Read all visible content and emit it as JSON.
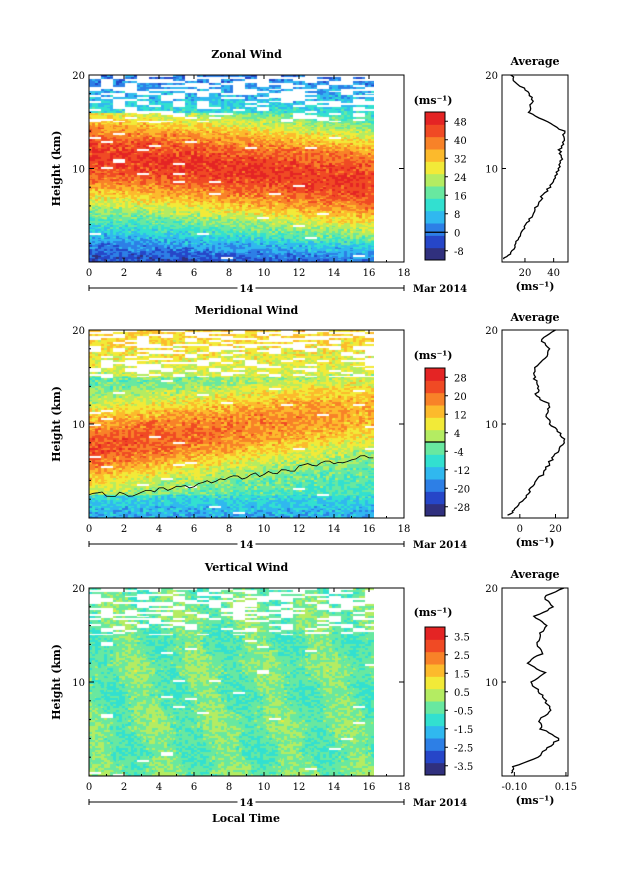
{
  "figure": {
    "date_label": "Mar 2014",
    "day_label": "14",
    "xlabel": "Local Time"
  },
  "chart_data": [
    {
      "type": "heatmap",
      "title": "Zonal Wind",
      "ylabel": "Height (km)",
      "xlim": [
        0,
        18
      ],
      "ylim": [
        0,
        20
      ],
      "x_ticks": [
        "0",
        "2",
        "4",
        "6",
        "8",
        "10",
        "12",
        "14",
        "16",
        "18"
      ],
      "y_ticks": [
        "20",
        "10"
      ],
      "data_x_range": [
        0,
        16.3
      ],
      "colorbar": {
        "unit_label": "(ms⁻¹)",
        "tick_labels": [
          "48",
          "40",
          "32",
          "24",
          "16",
          "8",
          "0",
          "-8"
        ],
        "range": [
          -12,
          52
        ],
        "zero_line_value": 0
      },
      "color_stops": [
        "#30307e",
        "#2646c8",
        "#2d7fe6",
        "#30b8ef",
        "#32e0d0",
        "#68e8a0",
        "#b4ec62",
        "#f2ea38",
        "#fcba2c",
        "#f88228",
        "#f04a24",
        "#e42424"
      ],
      "profile": {
        "title": "Average",
        "xlim": [
          4,
          50
        ],
        "x_ticks": [
          "20",
          "40"
        ],
        "x_tick_values": [
          20,
          40
        ],
        "xlabel": "(ms⁻¹)",
        "heights": [
          0.3,
          1,
          2,
          3,
          4,
          5,
          6,
          7,
          8,
          9,
          10,
          11,
          12,
          13,
          14,
          15,
          16,
          17,
          18,
          19,
          20
        ],
        "values": [
          5,
          10,
          14,
          18,
          21,
          25,
          28,
          32,
          37,
          41,
          43,
          46,
          44,
          48,
          47,
          36,
          22,
          25,
          24,
          15,
          10
        ]
      }
    },
    {
      "type": "heatmap",
      "title": "Meridional Wind",
      "ylabel": "Height (km)",
      "xlim": [
        0,
        18
      ],
      "ylim": [
        0,
        20
      ],
      "x_ticks": [
        "0",
        "2",
        "4",
        "6",
        "8",
        "10",
        "12",
        "14",
        "16",
        "18"
      ],
      "y_ticks": [
        "20",
        "10"
      ],
      "data_x_range": [
        0,
        16.3
      ],
      "colorbar": {
        "unit_label": "(ms⁻¹)",
        "tick_labels": [
          "28",
          "20",
          "12",
          "4",
          "-4",
          "-12",
          "-20",
          "-28"
        ],
        "range": [
          -32,
          32
        ],
        "zero_line_value": 0
      },
      "color_stops": [
        "#30307e",
        "#2646c8",
        "#2d7fe6",
        "#30b8ef",
        "#32e0d0",
        "#68e8a0",
        "#b4ec62",
        "#f2ea38",
        "#fcba2c",
        "#f88228",
        "#f04a24",
        "#e42424"
      ],
      "profile": {
        "title": "Average",
        "xlim": [
          -10,
          27
        ],
        "x_ticks": [
          "0",
          "20"
        ],
        "x_tick_values": [
          0,
          20
        ],
        "xlabel": "(ms⁻¹)",
        "heights": [
          0.3,
          1,
          2,
          3,
          4,
          5,
          6,
          7,
          8,
          9,
          10,
          11,
          12,
          13,
          14,
          15,
          16,
          17,
          18,
          19,
          20
        ],
        "values": [
          -6,
          -3,
          2,
          6,
          10,
          14,
          17,
          21,
          25,
          23,
          17,
          15,
          17,
          9,
          11,
          8,
          9,
          14,
          16,
          12,
          20
        ]
      }
    },
    {
      "type": "heatmap",
      "title": "Vertical Wind",
      "ylabel": "Height (km)",
      "xlim": [
        0,
        18
      ],
      "ylim": [
        0,
        20
      ],
      "x_ticks": [
        "0",
        "2",
        "4",
        "6",
        "8",
        "10",
        "12",
        "14",
        "16",
        "18"
      ],
      "y_ticks": [
        "20",
        "10"
      ],
      "data_x_range": [
        0,
        16.3
      ],
      "colorbar": {
        "unit_label": "(ms⁻¹)",
        "tick_labels": [
          "3.5",
          "2.5",
          "1.5",
          "0.5",
          "-0.5",
          "-1.5",
          "-2.5",
          "-3.5"
        ],
        "range": [
          -4,
          4
        ],
        "zero_line_value": null
      },
      "color_stops": [
        "#30307e",
        "#2646c8",
        "#2d7fe6",
        "#30b8ef",
        "#32e0d0",
        "#68e8a0",
        "#b4ec62",
        "#f2ea38",
        "#fcba2c",
        "#f88228",
        "#f04a24",
        "#e42424"
      ],
      "profile": {
        "title": "Average",
        "xlim": [
          -0.16,
          0.16
        ],
        "x_ticks": [
          "-0.10",
          "0.15"
        ],
        "x_tick_values": [
          -0.1,
          0.15
        ],
        "xlabel": "(ms⁻¹)",
        "heights": [
          0.3,
          1,
          2,
          3,
          4,
          5,
          6,
          7,
          8,
          9,
          10,
          11,
          12,
          13,
          14,
          15,
          16,
          17,
          18,
          19,
          20
        ],
        "values": [
          -0.12,
          -0.1,
          0.02,
          0.06,
          0.12,
          0.03,
          0.02,
          0.08,
          0.05,
          0.02,
          -0.02,
          0.05,
          -0.04,
          0.03,
          0.01,
          0.02,
          0.06,
          0.0,
          0.09,
          0.04,
          0.14
        ]
      }
    }
  ]
}
